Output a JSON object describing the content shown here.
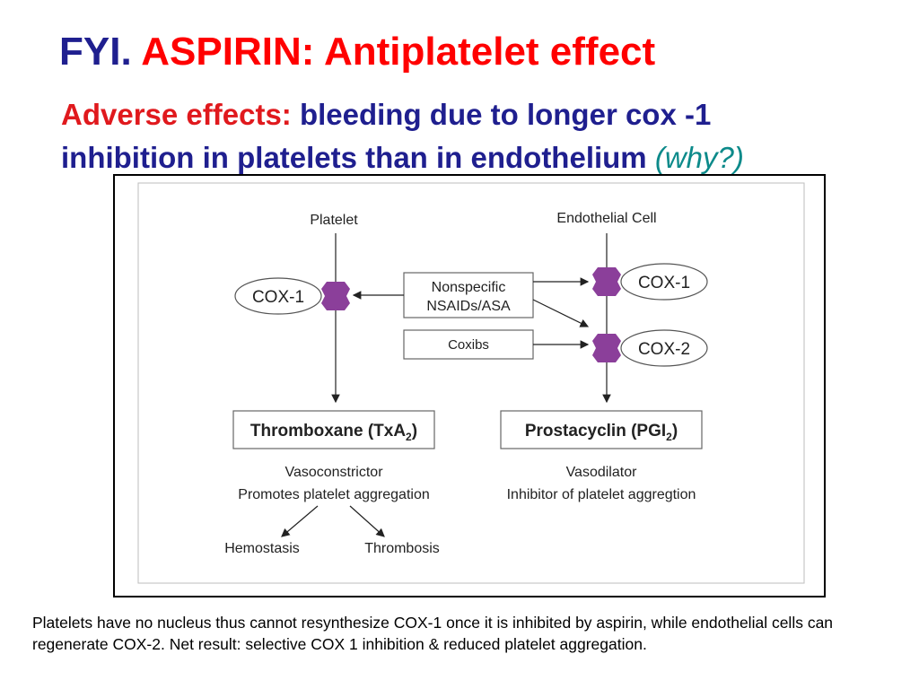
{
  "title": {
    "prefix": "FYI.",
    "main": "ASPIRIN: Antiplatelet effect"
  },
  "subtitle": {
    "label": "Adverse effects:",
    "line1_rest": "bleeding due to longer cox -1",
    "line2": "inhibition in platelets than in endothelium",
    "why": "(why?)"
  },
  "diagram": {
    "platelet": "Platelet",
    "endothelial": "Endothelial Cell",
    "cox1_left": "COX-1",
    "cox1_right": "COX-1",
    "cox2_right": "COX-2",
    "nsaids_line1": "Nonspecific",
    "nsaids_line2": "NSAIDs/ASA",
    "coxibs": "Coxibs",
    "thromboxane": "Thromboxane (TxA",
    "thromboxane_sub": "2",
    "prostacyclin": "Prostacyclin (PGI",
    "prostacyclin_sub": "2",
    "paren_close": ")",
    "vasoconstrictor": "Vasoconstrictor",
    "promotes": "Promotes platelet aggregation",
    "vasodilator": "Vasodilator",
    "inhibitor": "Inhibitor of platelet aggregtion",
    "hemostasis": "Hemostasis",
    "thrombosis": "Thrombosis"
  },
  "caption": "Platelets have no nucleus thus cannot resynthesize COX-1 once it is inhibited by aspirin, while endothelial cells can regenerate COX-2. Net result: selective COX 1 inhibition & reduced platelet aggregation.",
  "colors": {
    "title_blue": "#1f1f8f",
    "title_red": "#ff0000",
    "why_teal": "#0c8a8a",
    "blocker_purple": "#8b3f9a"
  }
}
